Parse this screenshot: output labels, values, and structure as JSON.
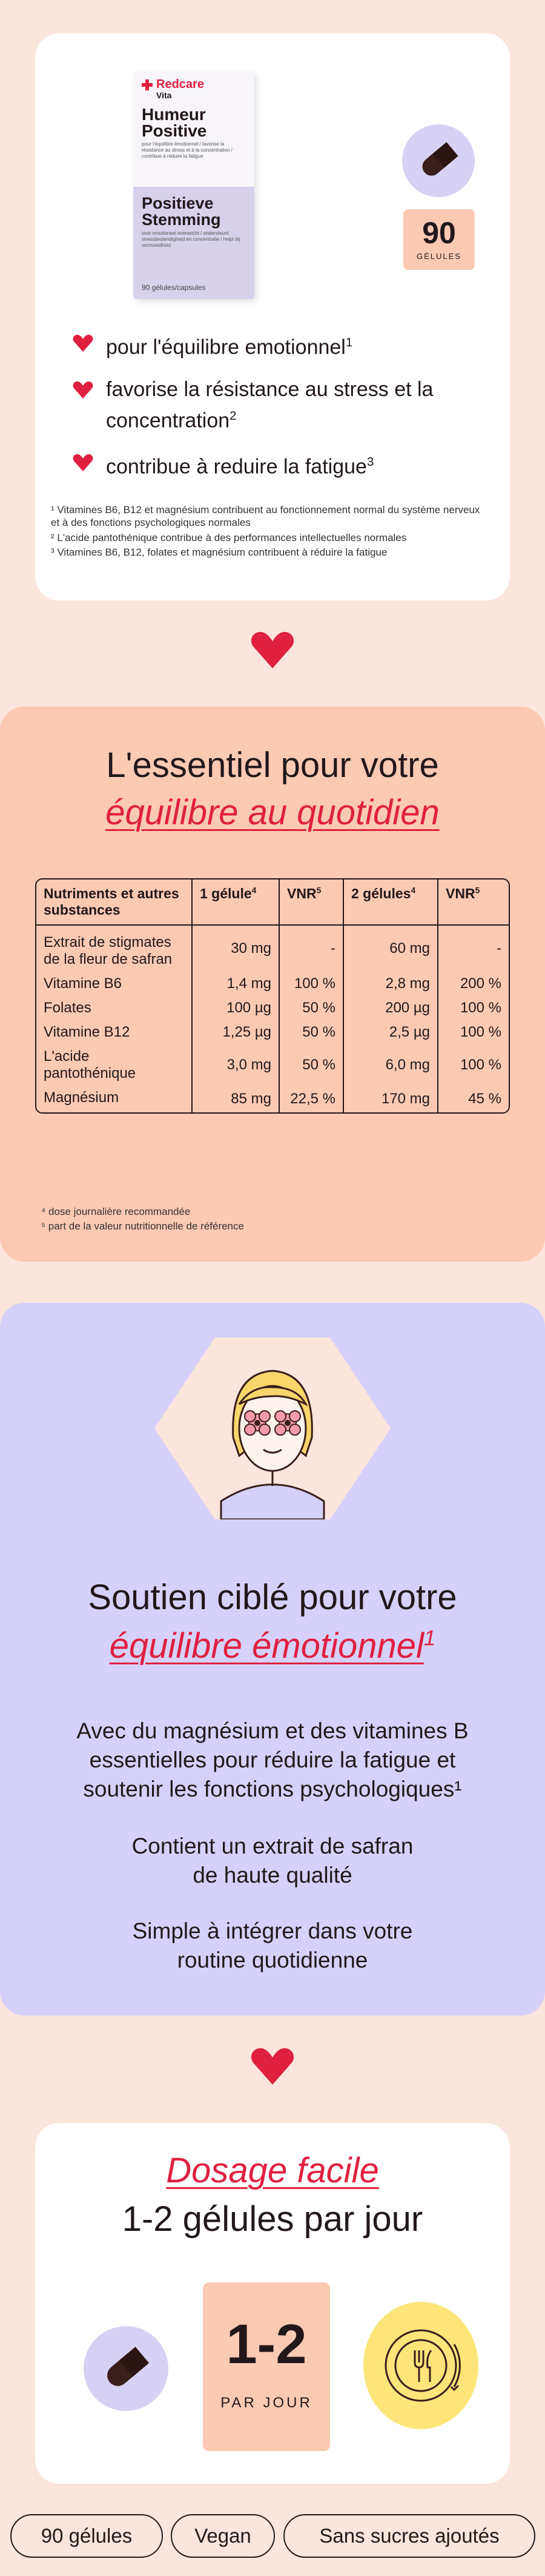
{
  "product": {
    "brand": "Redcare",
    "sub_brand": "Vita",
    "name_fr": "Humeur Positive",
    "claims_fr": "pour l'équilibre émotionnel / favorise la résistance au stress et à la concentration / contribue à réduire la fatigue",
    "name_nl": "Positieve Stemming",
    "claims_nl": "voor emotioneel evenwicht / ondersteunt stressbestendigheid en concentratie / helpt bij vermoeidheid",
    "quantity": "90 gélules/capsules"
  },
  "count": {
    "number": "90",
    "unit": "GÉLULES"
  },
  "benefits": [
    {
      "text": "pour l'équilibre emotionnel",
      "sup": "1"
    },
    {
      "text": "favorise la résistance au stress et la concentration",
      "sup": "2"
    },
    {
      "text": "contribue à reduire la fatigue",
      "sup": "3"
    }
  ],
  "footnotes": [
    "¹ Vitamines B6, B12 et magnésium contribuent au fonctionnement normal du système nerveux et à des fonctions psychologiques normales",
    "² L'acide pantothénique contribue à des performances intellectuelles normales",
    "³ Vitamines B6, B12, folates et magnésium contribuent à réduire la fatigue"
  ],
  "essentiel": {
    "title": "L'essentiel pour votre",
    "title_italic": "équilibre au quotidien",
    "headers": [
      "Nutriments et autres substances",
      "1 gélule",
      "VNR",
      "2 gélules",
      "VNR"
    ],
    "header_sups": [
      "",
      "4",
      "5",
      "4",
      "5"
    ],
    "rows": [
      [
        "Extrait de stigmates de la fleur de safran",
        "30 mg",
        "-",
        "60 mg",
        "-"
      ],
      [
        "Vitamine B6",
        "1,4 mg",
        "100 %",
        "2,8 mg",
        "200 %"
      ],
      [
        "Folates",
        "100 µg",
        "50 %",
        "200 µg",
        "100 %"
      ],
      [
        "Vitamine B12",
        "1,25 µg",
        "50 %",
        "2,5 µg",
        "100 %"
      ],
      [
        "L'acide pantothénique",
        "3,0 mg",
        "50 %",
        "6,0 mg",
        "100 %"
      ],
      [
        "Magnésium",
        "85 mg",
        "22,5 %",
        "170 mg",
        "45 %"
      ]
    ],
    "notes": [
      "⁴ dose journalière recommandée",
      "⁵ part de la valeur nutritionnelle de référence"
    ]
  },
  "soutien": {
    "title": "Soutien ciblé pour votre",
    "title_italic": "équilibre émotionnel",
    "title_sup": "1",
    "para1": "Avec du magnésium et des vitamines B essentielles pour réduire la fatigue et soutenir les fonctions psychologiques¹",
    "para2": "Contient un extrait de safran de haute qualité",
    "para3": "Simple à intégrer dans votre routine quotidienne"
  },
  "dosage": {
    "title_italic": "Dosage facile",
    "title": "1-2 gélules par jour",
    "amount": "1-2",
    "unit": "PAR JOUR"
  },
  "tags": [
    "90 gélules",
    "Vegan",
    "Sans sucres ajoutés"
  ],
  "colors": {
    "accent": "#e0203f",
    "peach": "#fcc9b3",
    "lavender": "#d5d1fa",
    "background": "#fbe5dc",
    "yellow": "#fde57a"
  },
  "icons": [
    "capsule-icon",
    "heart-icon",
    "face-icon",
    "plate-icon"
  ]
}
